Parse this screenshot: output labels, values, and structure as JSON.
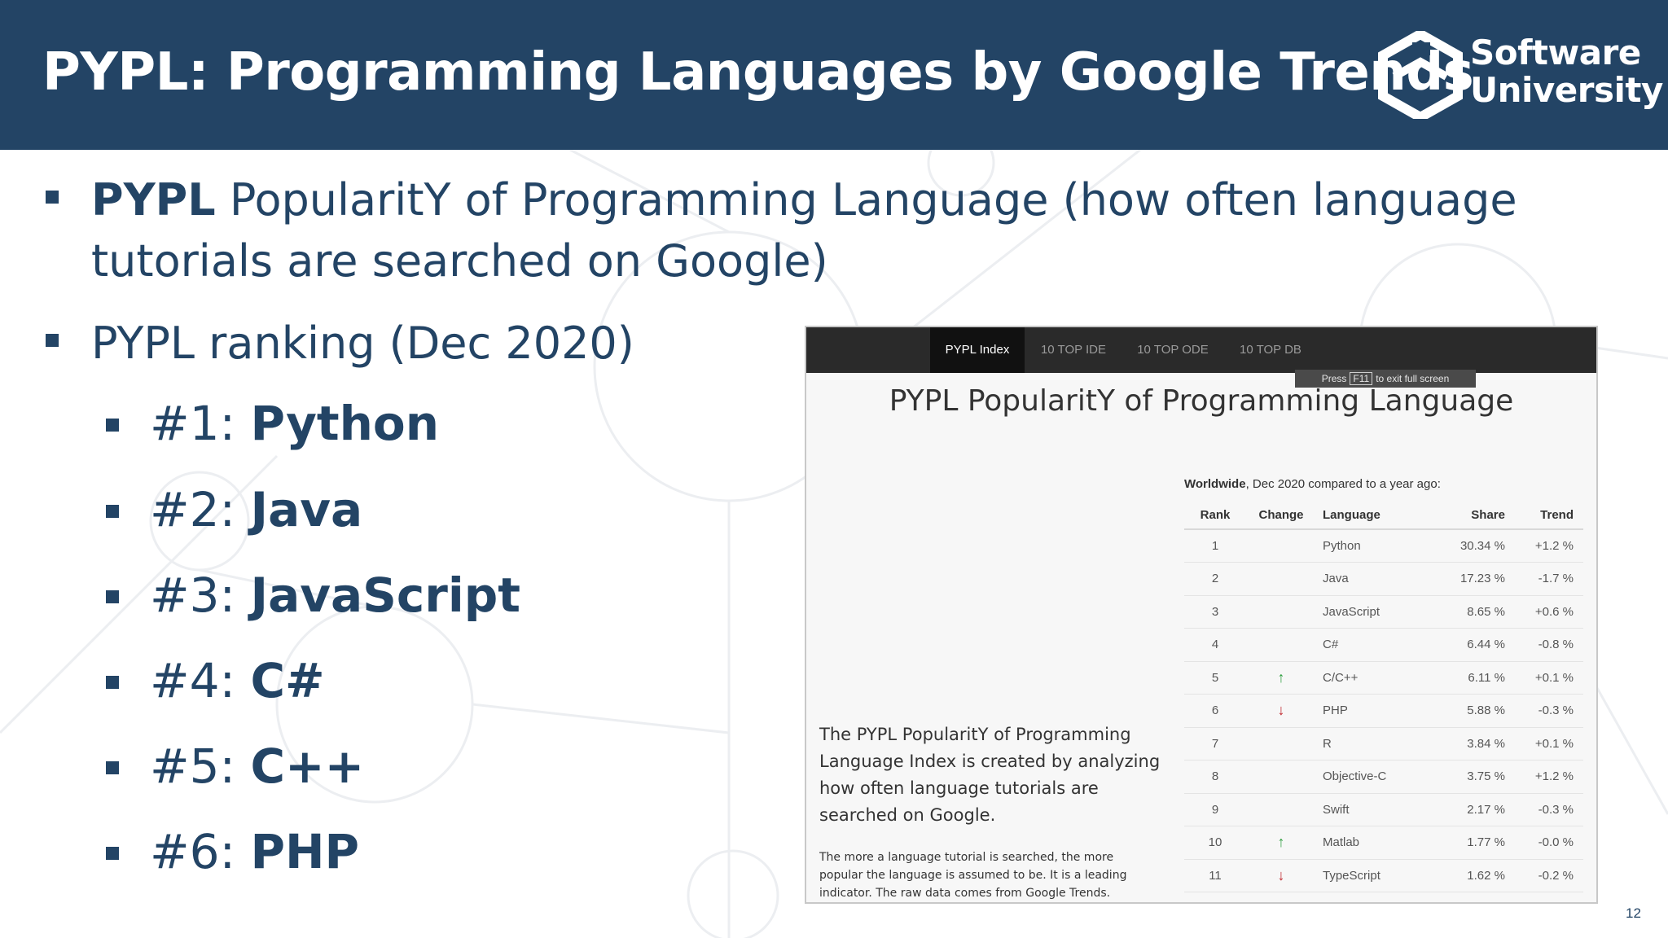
{
  "slide": {
    "title": "PYPL: Programming Languages by Google Trends",
    "logo": {
      "line1": "Software",
      "line2": "University"
    },
    "page_number": "12"
  },
  "bullets": {
    "item1": {
      "bold": "PYPL",
      "line1": " PopularitY of Programming Language (how often language",
      "line2": "tutorials are searched on Google)"
    },
    "item2": "PYPL ranking (Dec 2020)",
    "ranks": [
      {
        "label": "#1: ",
        "name": "Python"
      },
      {
        "label": "#2: ",
        "name": "Java"
      },
      {
        "label": "#3: ",
        "name": "JavaScript"
      },
      {
        "label": "#4: ",
        "name": "C#"
      },
      {
        "label": "#5: ",
        "name": "C++"
      },
      {
        "label": "#6: ",
        "name": "PHP"
      }
    ]
  },
  "screenshot": {
    "nav": [
      "PYPL Index",
      "10 TOP IDE",
      "10 TOP ODE",
      "10 TOP DB"
    ],
    "fullscreen_note": {
      "press": "Press",
      "key": "F11",
      "rest": "to exit full screen"
    },
    "title": "PYPL PopularitY of Programming Language",
    "subhead_bold": "Worldwide",
    "subhead_rest": ", Dec 2020 compared to a year ago:",
    "columns": [
      "Rank",
      "Change",
      "Language",
      "Share",
      "Trend"
    ],
    "rows": [
      {
        "rank": "1",
        "change": "",
        "language": "Python",
        "share": "30.34 %",
        "trend": "+1.2 %"
      },
      {
        "rank": "2",
        "change": "",
        "language": "Java",
        "share": "17.23 %",
        "trend": "-1.7 %"
      },
      {
        "rank": "3",
        "change": "",
        "language": "JavaScript",
        "share": "8.65 %",
        "trend": "+0.6 %"
      },
      {
        "rank": "4",
        "change": "",
        "language": "C#",
        "share": "6.44 %",
        "trend": "-0.8 %"
      },
      {
        "rank": "5",
        "change": "up",
        "language": "C/C++",
        "share": "6.11 %",
        "trend": "+0.1 %"
      },
      {
        "rank": "6",
        "change": "down",
        "language": "PHP",
        "share": "5.88 %",
        "trend": "-0.3 %"
      },
      {
        "rank": "7",
        "change": "",
        "language": "R",
        "share": "3.84 %",
        "trend": "+0.1 %"
      },
      {
        "rank": "8",
        "change": "",
        "language": "Objective-C",
        "share": "3.75 %",
        "trend": "+1.2 %"
      },
      {
        "rank": "9",
        "change": "",
        "language": "Swift",
        "share": "2.17 %",
        "trend": "-0.3 %"
      },
      {
        "rank": "10",
        "change": "up",
        "language": "Matlab",
        "share": "1.77 %",
        "trend": "-0.0 %"
      },
      {
        "rank": "11",
        "change": "down",
        "language": "TypeScript",
        "share": "1.62 %",
        "trend": "-0.2 %"
      }
    ],
    "description": "The PYPL PopularitY of Programming Language Index is created by analyzing how often language tutorials are searched on Google.",
    "note": "The more a language tutorial is searched, the more popular the language is assumed to be. It is a leading indicator. The raw data comes from Google Trends."
  },
  "colors": {
    "header": "#234465",
    "text": "#234465",
    "up_arrow": "#2e9e3f",
    "down_arrow": "#c0262d"
  }
}
